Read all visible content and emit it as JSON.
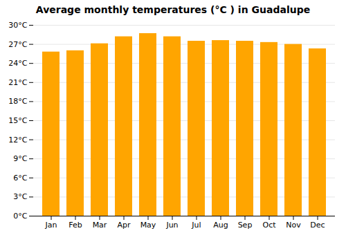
{
  "chart_data": {
    "type": "bar",
    "title": "Average monthly temperatures (°C ) in Guadalupe",
    "categories": [
      "Jan",
      "Feb",
      "Mar",
      "Apr",
      "May",
      "Jun",
      "Jul",
      "Aug",
      "Sep",
      "Oct",
      "Nov",
      "Dec"
    ],
    "values": [
      25.8,
      26.0,
      27.1,
      28.2,
      28.7,
      28.2,
      27.5,
      27.6,
      27.5,
      27.3,
      27.0,
      26.3
    ],
    "color": "#FFA500",
    "ylim": [
      0,
      30
    ],
    "yticks": [
      {
        "value": 0,
        "label": "0°C"
      },
      {
        "value": 3,
        "label": "3°C"
      },
      {
        "value": 6,
        "label": "6°C"
      },
      {
        "value": 9,
        "label": "9°C"
      },
      {
        "value": 12,
        "label": "12°C"
      },
      {
        "value": 15,
        "label": "15°C"
      },
      {
        "value": 18,
        "label": "18°C"
      },
      {
        "value": 21,
        "label": "21°C"
      },
      {
        "value": 24,
        "label": "24°C"
      },
      {
        "value": 27,
        "label": "27°C"
      },
      {
        "value": 30,
        "label": "30°C"
      }
    ],
    "grid": true
  }
}
